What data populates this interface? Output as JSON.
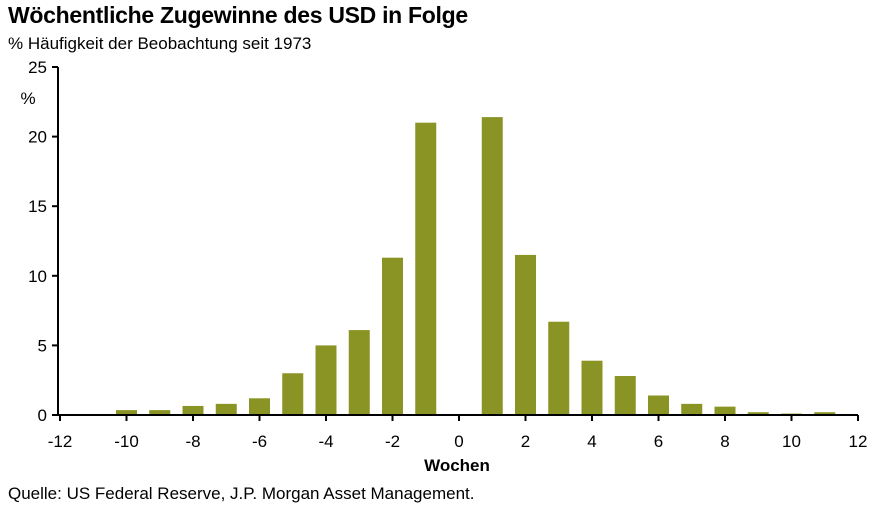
{
  "chart_data": {
    "type": "bar",
    "title": "Wöchentliche Zugewinne des USD in Folge",
    "subtitle": "% Häufigkeit der Beobachtung seit 1973",
    "xlabel": "Wochen",
    "ylabel": "%",
    "source": "Quelle: US Federal Reserve, J.P. Morgan Asset Management.",
    "ylim": [
      0,
      25
    ],
    "yticks": [
      0,
      5,
      10,
      15,
      20,
      25
    ],
    "xlim": [
      -12,
      12
    ],
    "xticks": [
      -12,
      -10,
      -8,
      -6,
      -4,
      -2,
      0,
      2,
      4,
      6,
      8,
      10,
      12
    ],
    "x": [
      -10,
      -9,
      -8,
      -7,
      -6,
      -5,
      -4,
      -3,
      -2,
      -1,
      1,
      2,
      3,
      4,
      5,
      6,
      7,
      8,
      9,
      10,
      11
    ],
    "values": [
      0.35,
      0.35,
      0.65,
      0.8,
      1.2,
      3.0,
      5.0,
      6.1,
      11.3,
      21.0,
      21.4,
      11.5,
      6.7,
      3.9,
      2.8,
      1.4,
      0.8,
      0.6,
      0.2,
      0.1,
      0.2
    ],
    "bar_color": "#8a9424",
    "grid": false,
    "legend": "none"
  }
}
